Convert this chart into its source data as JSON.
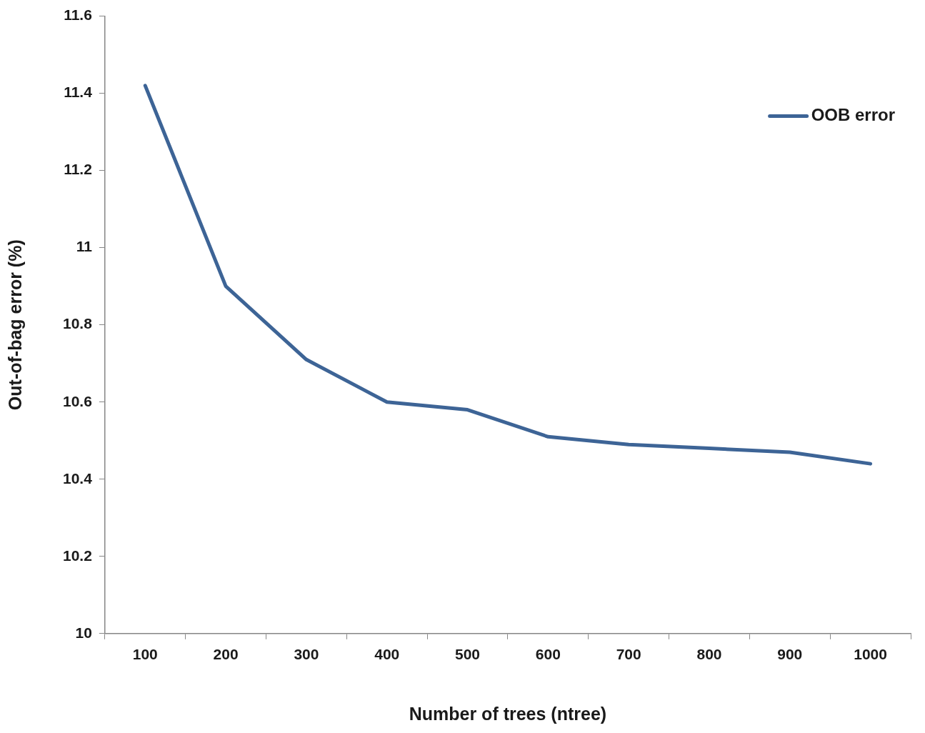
{
  "chart_data": {
    "type": "line",
    "xlabel": "Number of trees (ntree)",
    "ylabel": "Out-of-bag error (%)",
    "categories": [
      "100",
      "200",
      "300",
      "400",
      "500",
      "600",
      "700",
      "800",
      "900",
      "1000"
    ],
    "series": [
      {
        "name": "OOB error",
        "color": "#3d6496",
        "values": [
          11.42,
          10.9,
          10.71,
          10.6,
          10.58,
          10.51,
          10.49,
          10.48,
          10.47,
          10.44
        ]
      }
    ],
    "ylim": [
      10,
      11.6
    ],
    "yticks": [
      10,
      10.2,
      10.4,
      10.6,
      10.8,
      11,
      11.2,
      11.4,
      11.6
    ],
    "grid": false,
    "legend": "top right",
    "marker": "none",
    "line_style": "solid"
  }
}
